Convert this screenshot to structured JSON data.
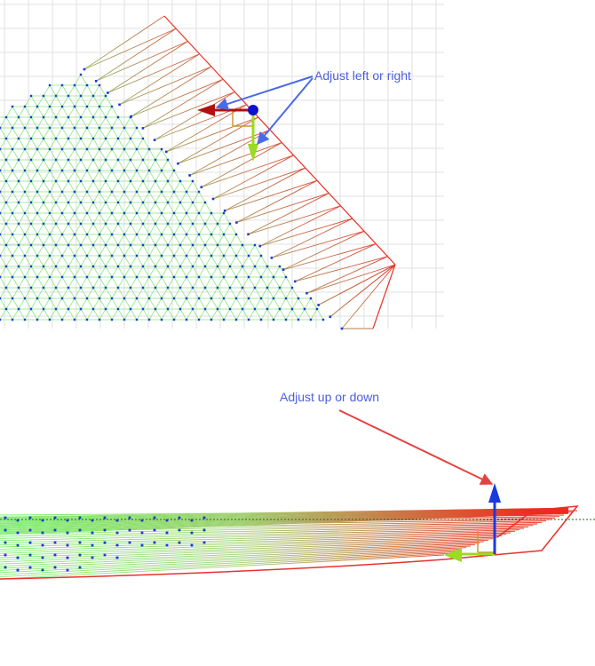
{
  "top_panel": {
    "annotation": "Adjust left or right"
  },
  "bottom_panel": {
    "annotation": "Adjust up or down"
  }
}
